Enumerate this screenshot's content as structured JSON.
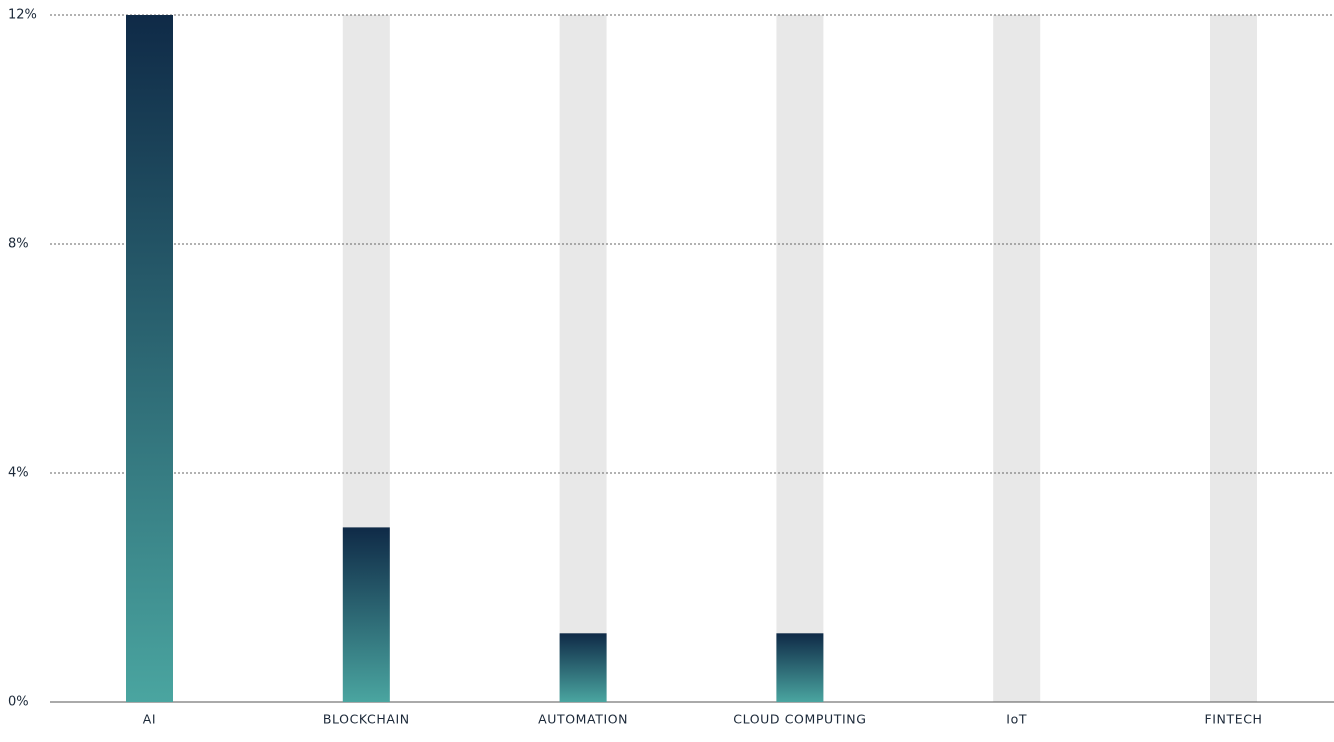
{
  "chart_data": {
    "type": "bar",
    "categories": [
      "AI",
      "BLOCKCHAIN",
      "AUTOMATION",
      "CLOUD COMPUTING",
      "IoT",
      "FINTECH"
    ],
    "values": [
      12,
      3.05,
      1.2,
      1.2,
      0,
      0
    ],
    "color_top": "#0f2a47",
    "color_bottom": "#4aa5a0",
    "track_color": "#e8e8e8",
    "ylim": [
      0,
      12
    ],
    "yticks": [
      {
        "value": 0,
        "label": "0%"
      },
      {
        "value": 4,
        "label": "4%"
      },
      {
        "value": 8,
        "label": "8%"
      },
      {
        "value": 12,
        "label": "12%"
      }
    ],
    "grid": true
  }
}
